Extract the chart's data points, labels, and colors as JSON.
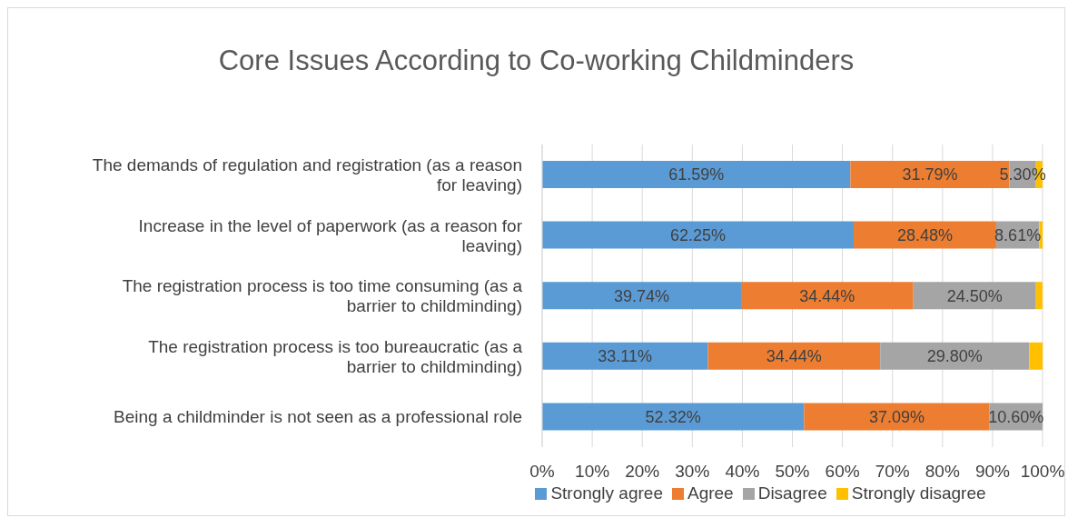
{
  "chart_data": {
    "type": "bar",
    "orientation": "horizontal",
    "stacked": true,
    "title": "Core Issues According to Co-working Childminders",
    "categories": [
      "The demands of regulation and registration (as a reason for leaving)",
      "Increase in the level of paperwork (as a reason for leaving)",
      "The registration process is too time consuming (as a barrier to childminding)",
      "The registration process is too bureaucratic (as a barrier to childminding)",
      "Being a childminder is not seen as a professional role"
    ],
    "series": [
      {
        "name": "Strongly agree",
        "color": "#5b9bd5",
        "values": [
          61.59,
          62.25,
          39.74,
          33.11,
          52.32
        ],
        "value_labels": [
          "61.59%",
          "62.25%",
          "39.74%",
          "33.11%",
          "52.32%"
        ]
      },
      {
        "name": "Agree",
        "color": "#ed7d31",
        "values": [
          31.79,
          28.48,
          34.44,
          34.44,
          37.09
        ],
        "value_labels": [
          "31.79%",
          "28.48%",
          "34.44%",
          "34.44%",
          "37.09%"
        ]
      },
      {
        "name": "Disagree",
        "color": "#a5a5a5",
        "values": [
          5.3,
          8.61,
          24.5,
          29.8,
          10.6
        ],
        "value_labels": [
          "5.30%",
          "8.61%",
          "24.50%",
          "29.80%",
          "10.60%"
        ]
      },
      {
        "name": "Strongly disagree",
        "color": "#ffc000",
        "values": [
          1.3,
          0.7,
          1.3,
          2.7,
          0
        ]
      }
    ],
    "xlim": [
      0,
      100
    ],
    "xticks": [
      {
        "value": 0,
        "label": "0%"
      },
      {
        "value": 10,
        "label": "10%"
      },
      {
        "value": 20,
        "label": "20%"
      },
      {
        "value": 30,
        "label": "30%"
      },
      {
        "value": 40,
        "label": "40%"
      },
      {
        "value": 50,
        "label": "50%"
      },
      {
        "value": 60,
        "label": "60%"
      },
      {
        "value": 70,
        "label": "70%"
      },
      {
        "value": 80,
        "label": "80%"
      },
      {
        "value": 90,
        "label": "90%"
      },
      {
        "value": 100,
        "label": "100%"
      }
    ],
    "grid": "x",
    "legend": "bottom"
  }
}
